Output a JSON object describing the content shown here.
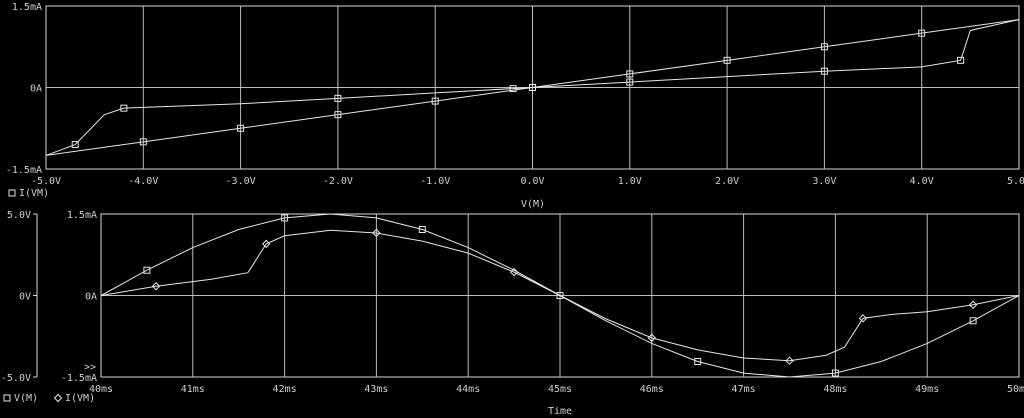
{
  "window": {
    "title": ""
  },
  "chart_data": [
    {
      "type": "line",
      "title": "",
      "xlabel": "V(M)",
      "ylabel": "",
      "xlim": [
        -5.0,
        5.0
      ],
      "ylim": [
        -1.5,
        1.5
      ],
      "x_ticks": [
        "-5.0V",
        "-4.0V",
        "-3.0V",
        "-2.0V",
        "-1.0V",
        "0.0V",
        "1.0V",
        "2.0V",
        "3.0V",
        "4.0V",
        "5.0V"
      ],
      "y_ticks": [
        "1.5mA",
        "0A",
        "-1.5mA"
      ],
      "legend": [
        {
          "marker": "square",
          "label": "I(VM)"
        }
      ],
      "grid": true,
      "series": [
        {
          "name": "I(VM)",
          "marker": "square",
          "x": [
            -5.0,
            -4.7,
            -4.4,
            -4.2,
            -3.0,
            -2.0,
            -1.0,
            -0.2,
            0.2,
            1.0,
            2.0,
            3.0,
            4.0,
            4.4,
            4.5,
            5.0
          ],
          "y": [
            -1.25,
            -1.05,
            -0.5,
            -0.38,
            -0.3,
            -0.2,
            -0.1,
            -0.02,
            0.02,
            0.1,
            0.2,
            0.3,
            0.38,
            0.5,
            1.05,
            1.25
          ]
        },
        {
          "name": "I(VM)",
          "marker": "square",
          "x": [
            -5.0,
            -4.0,
            -3.0,
            -2.0,
            -1.0,
            0.0,
            1.0,
            2.0,
            3.0,
            4.0,
            5.0
          ],
          "y": [
            -1.25,
            -1.0,
            -0.75,
            -0.5,
            -0.25,
            0.0,
            0.25,
            0.5,
            0.75,
            1.0,
            1.25
          ]
        }
      ]
    },
    {
      "type": "line",
      "title": "",
      "xlabel": "Time",
      "ylabel": "",
      "xlim": [
        40,
        50
      ],
      "x_ticks": [
        "40ms",
        "41ms",
        "42ms",
        "43ms",
        "44ms",
        "45ms",
        "46ms",
        "47ms",
        "48ms",
        "49ms",
        "50ms"
      ],
      "y_ticks_left": [
        "5.0V",
        "0V",
        "-5.0V"
      ],
      "y_ticks_right": [
        "1.5mA",
        "0A",
        "-1.5mA"
      ],
      "ylim_left": [
        -5.0,
        5.0
      ],
      "ylim_right": [
        -1.5,
        1.5
      ],
      "axis_marker": ">>",
      "legend": [
        {
          "marker": "square",
          "label": "V(M)"
        },
        {
          "marker": "diamond",
          "label": "I(VM)"
        }
      ],
      "grid": true,
      "series": [
        {
          "name": "V(M)",
          "marker": "square",
          "axis": "left",
          "x": [
            40,
            40.5,
            41,
            41.5,
            42,
            42.5,
            43,
            43.5,
            44,
            44.5,
            45,
            45.5,
            46,
            46.5,
            47,
            47.5,
            48,
            48.5,
            49,
            49.5,
            50
          ],
          "y": [
            0,
            1.55,
            2.94,
            4.05,
            4.76,
            5.0,
            4.76,
            4.05,
            2.94,
            1.55,
            0,
            -1.55,
            -2.94,
            -4.05,
            -4.76,
            -5.0,
            -4.76,
            -4.05,
            -2.94,
            -1.55,
            0
          ]
        },
        {
          "name": "I(VM)",
          "marker": "diamond",
          "axis": "right",
          "x": [
            40,
            40.6,
            41.2,
            41.6,
            41.8,
            42.0,
            42.5,
            43.0,
            43.5,
            44.0,
            44.5,
            45.0,
            45.5,
            46.0,
            46.5,
            47.0,
            47.5,
            47.9,
            48.1,
            48.3,
            48.6,
            49.0,
            49.5,
            50
          ],
          "y": [
            0,
            0.17,
            0.3,
            0.42,
            0.95,
            1.1,
            1.2,
            1.15,
            1.0,
            0.78,
            0.43,
            0,
            -0.43,
            -0.78,
            -1.0,
            -1.15,
            -1.2,
            -1.1,
            -0.95,
            -0.42,
            -0.35,
            -0.3,
            -0.17,
            0
          ]
        }
      ]
    }
  ]
}
